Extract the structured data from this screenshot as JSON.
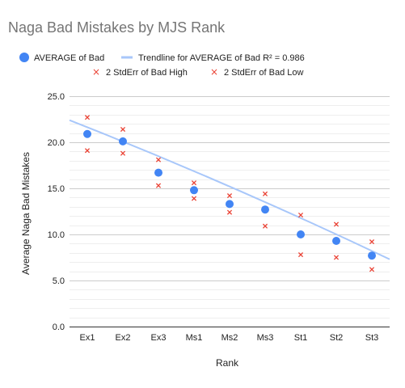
{
  "chart_data": {
    "type": "scatter",
    "title": "Naga Bad Mistakes by MJS Rank",
    "xlabel": "Rank",
    "ylabel": "Average Naga Bad Mistakes",
    "categories": [
      "Ex1",
      "Ex2",
      "Ex3",
      "Ms1",
      "Ms2",
      "Ms3",
      "St1",
      "St2",
      "St3"
    ],
    "y_ticks": [
      "0.0",
      "5.0",
      "10.0",
      "15.0",
      "20.0",
      "25.0"
    ],
    "ylim": [
      0,
      25
    ],
    "grid": true,
    "legend_position": "top",
    "series": [
      {
        "name": "AVERAGE of Bad",
        "marker": "circle",
        "color": "#4285f4",
        "values": [
          20.9,
          20.1,
          16.7,
          14.8,
          13.3,
          12.7,
          10.0,
          9.3,
          7.7
        ]
      },
      {
        "name": "2 StdErr of Bad High",
        "marker": "x",
        "color": "#ea4335",
        "values": [
          22.7,
          21.4,
          18.1,
          15.6,
          14.2,
          14.4,
          12.1,
          11.1,
          9.2
        ]
      },
      {
        "name": "2 StdErr of Bad Low",
        "marker": "x",
        "color": "#ea4335",
        "values": [
          19.1,
          18.8,
          15.3,
          13.9,
          12.4,
          10.9,
          7.8,
          7.5,
          6.2
        ]
      }
    ],
    "trendline": {
      "name": "Trendline for AVERAGE of Bad R² = 0.986",
      "color": "#a8c7fa",
      "y_start": 22.4,
      "y_end": 7.3
    }
  }
}
